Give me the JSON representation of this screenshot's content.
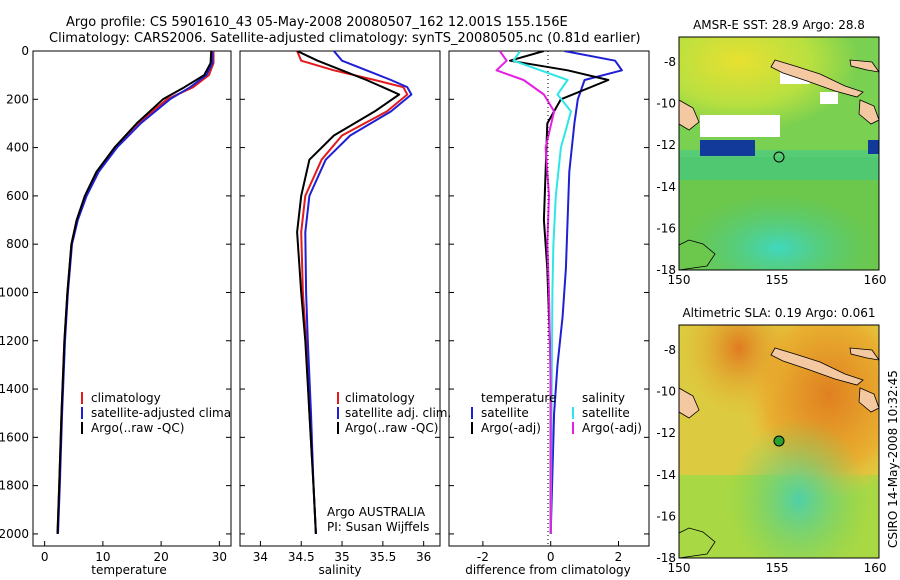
{
  "header": {
    "line1": "Argo profile: CS 5901610_43 05-May-2008 20080507_162 12.001S 155.156E",
    "line2": "Climatology: CARS2006. Satellite-adjusted climatology: synTS_20080505.nc (0.81d earlier)"
  },
  "colors": {
    "climatology": "#e31a1c",
    "satellite": "#1f1fd6",
    "argo": "#000000",
    "sal_satellite": "#2ee6e6",
    "sal_argo": "#e61ee6"
  },
  "chart_data": [
    {
      "type": "line",
      "xlabel": "temperature",
      "xlim": [
        -2,
        32
      ],
      "ylim": [
        2050,
        0
      ],
      "xticks": [
        0,
        10,
        20,
        30
      ],
      "yticks": [
        0,
        200,
        400,
        600,
        800,
        1000,
        1200,
        1400,
        1600,
        1800,
        2000
      ],
      "legend": [
        "climatology",
        "satellite-adjusted climatology",
        "Argo(..raw -QC)"
      ],
      "series": [
        {
          "name": "climatology",
          "x": [
            29.0,
            29.0,
            28.2,
            25.5,
            21.0,
            16.0,
            12.0,
            9.0,
            7.0,
            5.5,
            4.6,
            3.9,
            3.4,
            2.9,
            2.5,
            2.2
          ],
          "y": [
            0,
            50,
            100,
            150,
            200,
            300,
            400,
            500,
            600,
            700,
            800,
            1000,
            1200,
            1500,
            1800,
            2000
          ]
        },
        {
          "name": "satellite-adjusted climatology",
          "x": [
            28.8,
            28.8,
            27.8,
            25.0,
            21.5,
            16.5,
            12.4,
            9.3,
            7.2,
            5.7,
            4.7,
            4.0,
            3.5,
            3.0,
            2.6,
            2.3
          ],
          "y": [
            0,
            50,
            100,
            150,
            200,
            300,
            400,
            500,
            600,
            700,
            800,
            1000,
            1200,
            1500,
            1800,
            2000
          ]
        },
        {
          "name": "Argo(..raw -QC)",
          "x": [
            28.6,
            28.5,
            27.4,
            24.0,
            20.3,
            15.8,
            12.0,
            8.9,
            6.9,
            5.5,
            4.6,
            3.9,
            3.4,
            2.9,
            2.5,
            2.2
          ],
          "y": [
            0,
            50,
            100,
            150,
            200,
            300,
            400,
            500,
            600,
            700,
            800,
            1000,
            1200,
            1500,
            1800,
            2000
          ]
        }
      ]
    },
    {
      "type": "line",
      "xlabel": "salinity",
      "xlim": [
        33.75,
        36.2
      ],
      "ylim": [
        2050,
        0
      ],
      "xticks": [
        34,
        34.5,
        35,
        35.5,
        36
      ],
      "legend": [
        "climatology",
        "satellite adj. clim.",
        "Argo(..raw -QC)"
      ],
      "annotation": [
        "Argo AUSTRALIA",
        "PI: Susan Wijffels"
      ],
      "series": [
        {
          "name": "climatology",
          "x": [
            34.45,
            34.5,
            34.9,
            35.4,
            35.75,
            35.8,
            35.55,
            35.0,
            34.75,
            34.55,
            34.5,
            34.52,
            34.56,
            34.6,
            34.65,
            34.68
          ],
          "y": [
            0,
            40,
            80,
            120,
            150,
            180,
            250,
            350,
            450,
            600,
            750,
            1000,
            1200,
            1500,
            1800,
            2000
          ]
        },
        {
          "name": "satellite adj. clim.",
          "x": [
            34.9,
            35.0,
            35.3,
            35.6,
            35.8,
            35.85,
            35.6,
            35.1,
            34.8,
            34.6,
            34.55,
            34.56,
            34.58,
            34.62,
            34.65,
            34.68
          ],
          "y": [
            0,
            40,
            80,
            120,
            150,
            180,
            250,
            350,
            450,
            600,
            750,
            1000,
            1200,
            1500,
            1800,
            2000
          ]
        },
        {
          "name": "Argo(..raw -QC)",
          "x": [
            34.45,
            34.7,
            35.0,
            35.3,
            35.5,
            35.7,
            35.4,
            34.9,
            34.6,
            34.5,
            34.45,
            34.5,
            34.55,
            34.6,
            34.65,
            34.68
          ],
          "y": [
            0,
            40,
            80,
            120,
            150,
            180,
            250,
            350,
            450,
            600,
            750,
            1000,
            1200,
            1500,
            1800,
            2000
          ]
        }
      ]
    },
    {
      "type": "line",
      "xlabel": "difference from climatology",
      "xlim": [
        -3,
        2.9
      ],
      "ylim": [
        2050,
        0
      ],
      "xticks": [
        -2,
        0,
        2
      ],
      "legend_temperature_title": "temperature",
      "legend_salinity_title": "salinity",
      "legend": [
        "satellite",
        "Argo(-adj)",
        "satellite",
        "Argo(-adj)"
      ],
      "series": [
        {
          "name": "temperature satellite",
          "x": [
            0.4,
            1.9,
            2.1,
            1.0,
            0.8,
            0.7,
            0.55,
            0.5,
            0.45,
            0.35,
            0.2,
            0.1,
            0.0
          ],
          "y": [
            0,
            40,
            80,
            120,
            200,
            300,
            500,
            700,
            900,
            1100,
            1300,
            1500,
            2000
          ]
        },
        {
          "name": "temperature Argo(-adj)",
          "x": [
            -0.2,
            -1.2,
            0.5,
            1.7,
            0.3,
            -0.1,
            -0.15,
            -0.2,
            -0.1,
            -0.05,
            0.0,
            0.0,
            0.0
          ],
          "y": [
            0,
            40,
            80,
            120,
            200,
            300,
            500,
            700,
            900,
            1100,
            1300,
            1500,
            2000
          ]
        },
        {
          "name": "salinity satellite",
          "x": [
            -0.9,
            -1.1,
            -0.3,
            0.5,
            0.2,
            0.6,
            0.3,
            0.15,
            0.08,
            0.05,
            0.03,
            0.0
          ],
          "y": [
            0,
            40,
            80,
            120,
            180,
            250,
            400,
            600,
            800,
            1000,
            1400,
            2000
          ]
        },
        {
          "name": "salinity Argo(-adj)",
          "x": [
            -1.5,
            -1.3,
            -1.6,
            -0.8,
            -0.2,
            0.1,
            -0.15,
            -0.05,
            -0.1,
            -0.05,
            0.0,
            0.0
          ],
          "y": [
            0,
            40,
            80,
            120,
            180,
            250,
            400,
            600,
            800,
            1000,
            1400,
            2000
          ]
        }
      ]
    },
    {
      "type": "heatmap",
      "title": "AMSR-E SST: 28.9  Argo: 28.8",
      "xlim": [
        150,
        160.2
      ],
      "ylim": [
        -18,
        -6.8
      ],
      "xticks": [
        150,
        155,
        160
      ],
      "yticks": [
        -8,
        -10,
        -12,
        -14,
        -16,
        -18
      ],
      "marker": [
        155.156,
        -12.001
      ]
    },
    {
      "type": "heatmap",
      "title": "Altimetric SLA: 0.19  Argo: 0.061",
      "xlim": [
        150,
        160.2
      ],
      "ylim": [
        -18,
        -6.8
      ],
      "xticks": [
        150,
        155,
        160
      ],
      "yticks": [
        -8,
        -10,
        -12,
        -14,
        -16,
        -18
      ],
      "marker": [
        155.156,
        -12.001
      ]
    }
  ],
  "credit": "CSIRO 14-May-2008 10:32:45"
}
